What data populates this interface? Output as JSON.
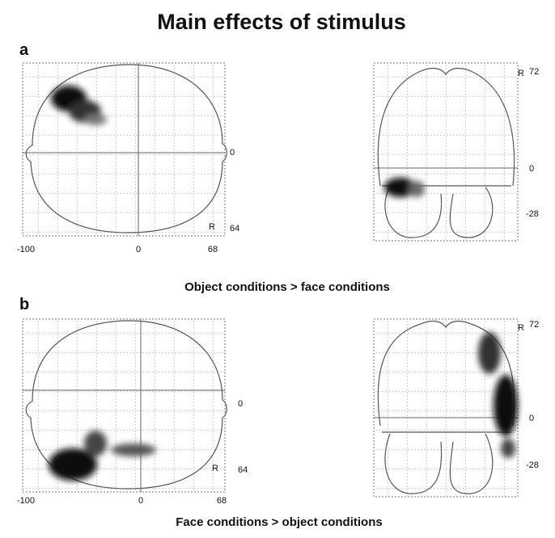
{
  "title": "Main effects of stimulus",
  "panels": [
    {
      "label": "a",
      "caption": "Object conditions > face conditions",
      "axial": {
        "x_labels": [
          -100,
          0,
          68
        ],
        "y_labels": [
          0,
          64
        ],
        "orientation": "R"
      },
      "coronal": {
        "y_labels": [
          72,
          0,
          -28
        ],
        "orientation": "R"
      }
    },
    {
      "label": "b",
      "caption": "Face conditions > object conditions",
      "axial": {
        "x_labels": [
          -100,
          0,
          68
        ],
        "y_labels": [
          0,
          64
        ],
        "orientation": "R"
      },
      "coronal": {
        "y_labels": [
          72,
          0,
          -28
        ],
        "orientation": "R"
      }
    }
  ]
}
